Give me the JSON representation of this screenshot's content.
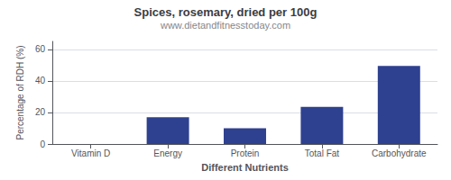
{
  "chart_data": {
    "type": "bar",
    "title": "Spices, rosemary, dried per 100g",
    "subtitle": "www.dietandfitnesstoday.com",
    "xlabel": "Different Nutrients",
    "ylabel": "Percentage of RDH (%)",
    "categories": [
      "Vitamin D",
      "Energy",
      "Protein",
      "Total Fat",
      "Carbohydrate"
    ],
    "values": [
      0,
      17,
      10,
      23.5,
      49.5
    ],
    "color": "#2E4090",
    "ylim": [
      0,
      65
    ],
    "yticks": [
      0,
      20,
      40,
      60
    ],
    "grid": true
  }
}
